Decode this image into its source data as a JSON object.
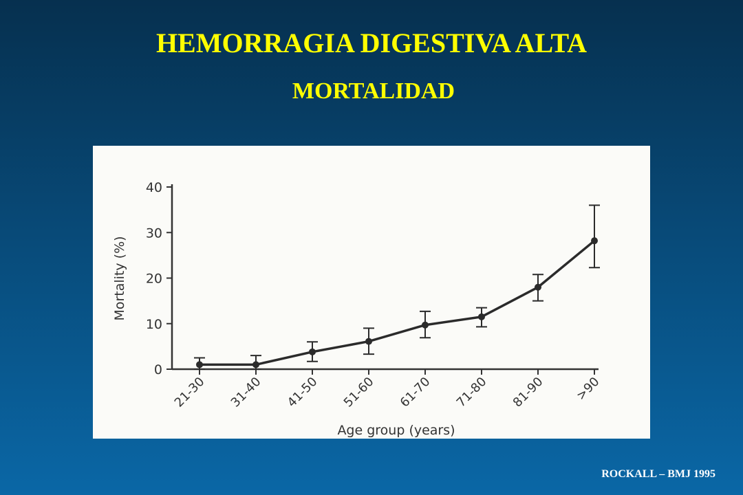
{
  "slide": {
    "title": "HEMORRAGIA DIGESTIVA ALTA",
    "subtitle": "MORTALIDAD",
    "footer": "ROCKALL – BMJ 1995"
  },
  "chart_data": {
    "type": "line",
    "x_label": "Age group (years)",
    "y_label": "Mortality (%)",
    "categories": [
      "21-30",
      "31-40",
      "41-50",
      "51-60",
      "61-70",
      "71-80",
      "81-90",
      ">90"
    ],
    "series": [
      {
        "color": "#2b2b2b",
        "values": [
          1,
          1,
          3.8,
          6.1,
          9.7,
          11.5,
          18,
          28.2
        ],
        "errors_minus": [
          1,
          1,
          2.1,
          2.8,
          2.8,
          2.2,
          3,
          5.9
        ],
        "errors_plus": [
          1.5,
          2,
          2.2,
          2.9,
          3,
          2,
          2.8,
          7.8
        ]
      }
    ],
    "ylim": [
      0,
      40
    ],
    "yticks": [
      0,
      10,
      20,
      30,
      40
    ]
  }
}
